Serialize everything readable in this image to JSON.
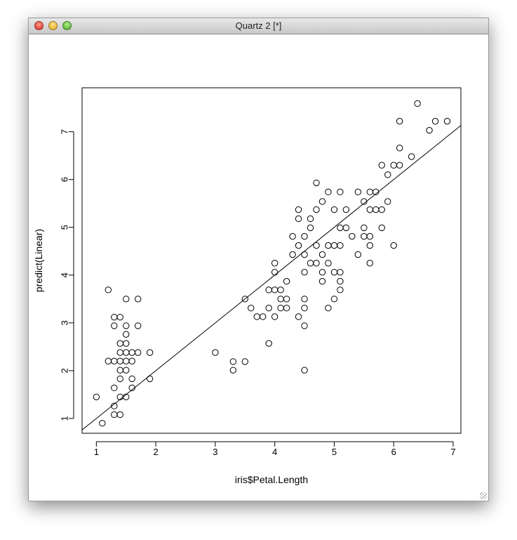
{
  "window": {
    "title": "Quartz 2 [*]"
  },
  "chart_data": {
    "type": "scatter",
    "title": "",
    "xlabel": "iris$Petal.Length",
    "ylabel": "predict(Linear)",
    "xlim": [
      0.76,
      7.13
    ],
    "ylim": [
      0.69,
      7.92
    ],
    "xticks": [
      1,
      2,
      3,
      4,
      5,
      6,
      7
    ],
    "yticks": [
      1,
      2,
      3,
      4,
      5,
      6,
      7
    ],
    "grid": false,
    "reference_line": {
      "intercept": 0,
      "slope": 1
    },
    "points": [
      [
        1.2,
        3.69
      ],
      [
        1.5,
        3.5
      ],
      [
        1.7,
        3.5
      ],
      [
        1.3,
        3.12
      ],
      [
        1.4,
        3.12
      ],
      [
        1.3,
        2.94
      ],
      [
        1.5,
        2.94
      ],
      [
        1.7,
        2.94
      ],
      [
        1.5,
        2.76
      ],
      [
        1.4,
        2.57
      ],
      [
        1.5,
        2.57
      ],
      [
        1.4,
        2.38
      ],
      [
        1.5,
        2.38
      ],
      [
        1.6,
        2.38
      ],
      [
        1.7,
        2.38
      ],
      [
        1.9,
        2.38
      ],
      [
        1.2,
        2.2
      ],
      [
        1.3,
        2.2
      ],
      [
        1.4,
        2.2
      ],
      [
        1.5,
        2.2
      ],
      [
        1.6,
        2.2
      ],
      [
        1.4,
        2.01
      ],
      [
        1.5,
        2.01
      ],
      [
        1.4,
        1.83
      ],
      [
        1.6,
        1.83
      ],
      [
        1.9,
        1.83
      ],
      [
        1.3,
        1.64
      ],
      [
        1.6,
        1.64
      ],
      [
        1.0,
        1.45
      ],
      [
        1.4,
        1.45
      ],
      [
        1.5,
        1.45
      ],
      [
        1.3,
        1.26
      ],
      [
        1.3,
        1.08
      ],
      [
        1.4,
        1.08
      ],
      [
        1.1,
        0.9
      ],
      [
        4.7,
        5.93
      ],
      [
        4.9,
        5.74
      ],
      [
        5.1,
        5.74
      ],
      [
        5.4,
        5.74
      ],
      [
        4.8,
        5.54
      ],
      [
        4.4,
        5.37
      ],
      [
        4.7,
        5.37
      ],
      [
        5.0,
        5.37
      ],
      [
        5.2,
        5.37
      ],
      [
        4.4,
        5.18
      ],
      [
        4.6,
        5.18
      ],
      [
        4.6,
        4.99
      ],
      [
        5.1,
        4.99
      ],
      [
        5.2,
        4.99
      ],
      [
        4.3,
        4.81
      ],
      [
        4.5,
        4.81
      ],
      [
        5.3,
        4.81
      ],
      [
        4.4,
        4.62
      ],
      [
        4.7,
        4.62
      ],
      [
        4.9,
        4.62
      ],
      [
        5.0,
        4.62
      ],
      [
        5.1,
        4.62
      ],
      [
        4.3,
        4.43
      ],
      [
        4.5,
        4.43
      ],
      [
        4.8,
        4.43
      ],
      [
        5.4,
        4.43
      ],
      [
        4.0,
        4.25
      ],
      [
        4.6,
        4.25
      ],
      [
        4.7,
        4.25
      ],
      [
        4.9,
        4.25
      ],
      [
        4.0,
        4.06
      ],
      [
        4.5,
        4.06
      ],
      [
        4.8,
        4.06
      ],
      [
        5.0,
        4.06
      ],
      [
        5.1,
        4.06
      ],
      [
        4.2,
        3.87
      ],
      [
        4.8,
        3.87
      ],
      [
        5.1,
        3.87
      ],
      [
        3.9,
        3.69
      ],
      [
        4.0,
        3.69
      ],
      [
        4.1,
        3.69
      ],
      [
        5.1,
        3.69
      ],
      [
        3.5,
        3.5
      ],
      [
        4.1,
        3.5
      ],
      [
        4.2,
        3.5
      ],
      [
        4.5,
        3.5
      ],
      [
        5.0,
        3.5
      ],
      [
        3.6,
        3.31
      ],
      [
        3.9,
        3.31
      ],
      [
        4.1,
        3.31
      ],
      [
        4.2,
        3.31
      ],
      [
        4.5,
        3.31
      ],
      [
        4.9,
        3.31
      ],
      [
        3.7,
        3.13
      ],
      [
        3.8,
        3.13
      ],
      [
        4.0,
        3.13
      ],
      [
        4.4,
        3.13
      ],
      [
        4.5,
        2.94
      ],
      [
        3.9,
        2.57
      ],
      [
        3.0,
        2.38
      ],
      [
        3.3,
        2.19
      ],
      [
        3.5,
        2.19
      ],
      [
        3.3,
        2.01
      ],
      [
        4.5,
        2.01
      ],
      [
        6.4,
        7.59
      ],
      [
        6.1,
        7.22
      ],
      [
        6.7,
        7.22
      ],
      [
        6.9,
        7.22
      ],
      [
        6.6,
        7.03
      ],
      [
        6.1,
        6.66
      ],
      [
        6.3,
        6.48
      ],
      [
        5.8,
        6.3
      ],
      [
        6.0,
        6.3
      ],
      [
        6.1,
        6.3
      ],
      [
        5.9,
        6.1
      ],
      [
        5.6,
        5.74
      ],
      [
        5.7,
        5.74
      ],
      [
        5.5,
        5.54
      ],
      [
        5.9,
        5.54
      ],
      [
        5.6,
        5.37
      ],
      [
        5.7,
        5.37
      ],
      [
        5.8,
        5.37
      ],
      [
        5.5,
        4.99
      ],
      [
        5.8,
        4.99
      ],
      [
        5.5,
        4.81
      ],
      [
        5.6,
        4.81
      ],
      [
        5.6,
        4.62
      ],
      [
        6.0,
        4.62
      ],
      [
        5.6,
        4.25
      ]
    ]
  }
}
